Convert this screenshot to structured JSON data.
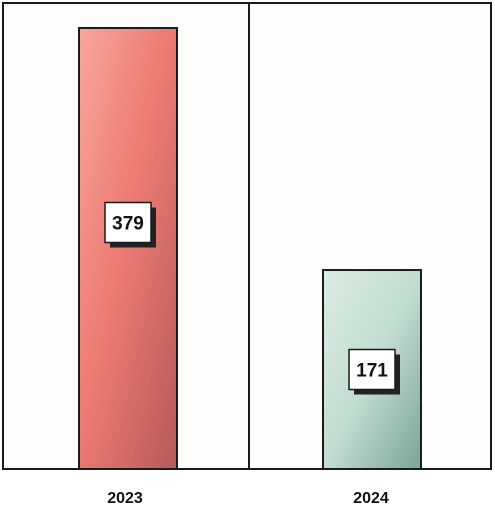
{
  "chart_data": {
    "type": "bar",
    "categories": [
      "2023",
      "2024"
    ],
    "values": [
      379,
      171
    ],
    "data_labels": [
      "379",
      "171"
    ],
    "title": "",
    "xlabel": "",
    "ylabel": "",
    "ylim": [
      0,
      379
    ],
    "grid": false,
    "legend": "none",
    "colors": [
      "#f07a72",
      "#cfe6da"
    ]
  }
}
